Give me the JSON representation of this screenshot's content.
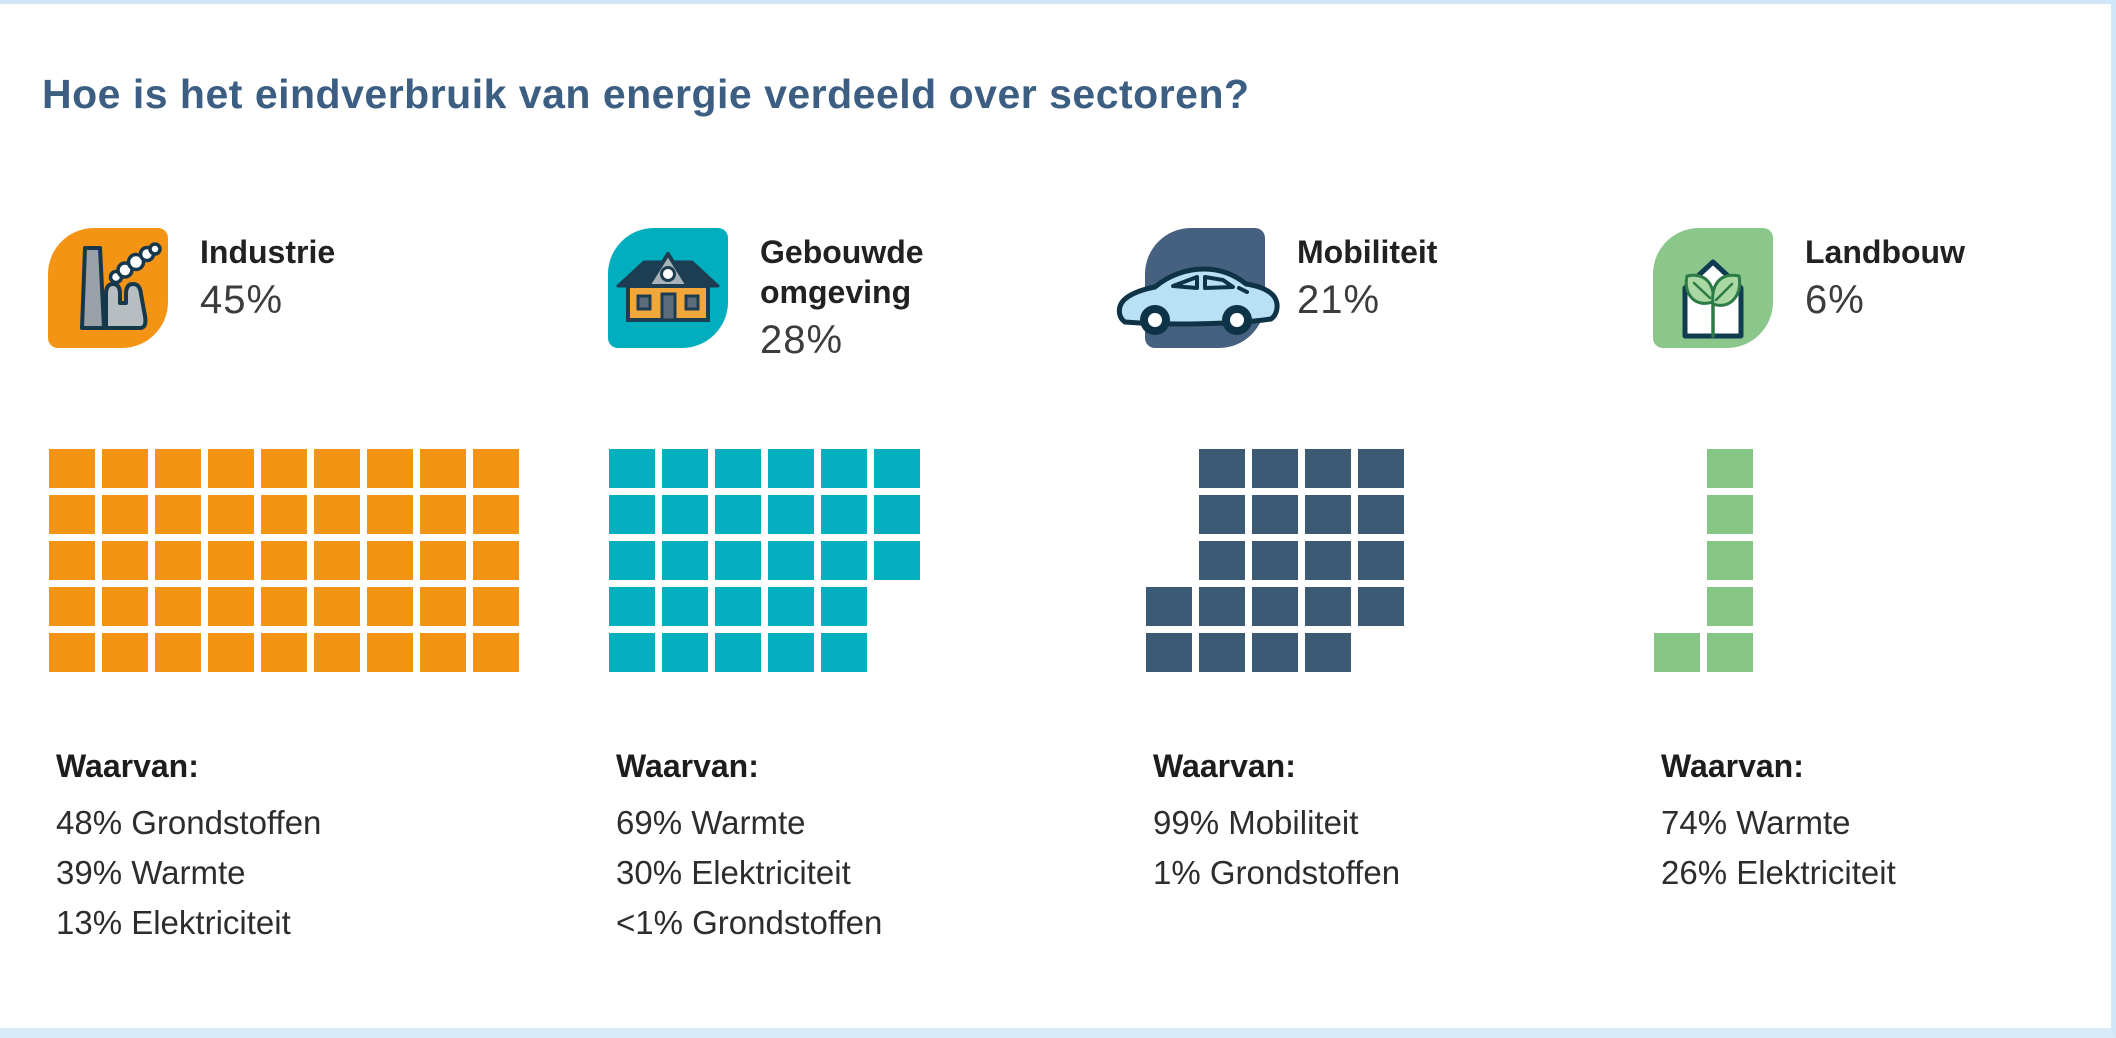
{
  "title": "Hoe is het eindverbruik van energie verdeeld over sectoren?",
  "breakdown_label": "Waarvan:",
  "colors": {
    "title_text": "#3c5e82",
    "frame_border": "#cfe7f8",
    "industrie": "#f39415",
    "gebouwde_omgeving": "#04b0bf",
    "mobiliteit": "#3d5a74",
    "landbouw": "#85c685"
  },
  "sectors": [
    {
      "id": "industrie",
      "name": "Industrie",
      "percent": "45%",
      "icon": "factory-icon",
      "color": "#f39415",
      "badge_color": "#f39415",
      "waffle_rows": [
        [
          1,
          1,
          1,
          1,
          1,
          1,
          1,
          1,
          1
        ],
        [
          1,
          1,
          1,
          1,
          1,
          1,
          1,
          1,
          1
        ],
        [
          1,
          1,
          1,
          1,
          1,
          1,
          1,
          1,
          1
        ],
        [
          1,
          1,
          1,
          1,
          1,
          1,
          1,
          1,
          1
        ],
        [
          1,
          1,
          1,
          1,
          1,
          1,
          1,
          1,
          1
        ]
      ],
      "breakdown": [
        "48% Grondstoffen",
        "39% Warmte",
        "13% Elektriciteit"
      ]
    },
    {
      "id": "gebouwde-omgeving",
      "name": "Gebouwde omgeving",
      "percent": "28%",
      "icon": "house-icon",
      "color": "#04b0bf",
      "badge_color": "#00aebe",
      "waffle_rows": [
        [
          1,
          1,
          1,
          1,
          1,
          1
        ],
        [
          1,
          1,
          1,
          1,
          1,
          1
        ],
        [
          1,
          1,
          1,
          1,
          1,
          1
        ],
        [
          1,
          1,
          1,
          1,
          1,
          0
        ],
        [
          1,
          1,
          1,
          1,
          1,
          0
        ]
      ],
      "breakdown": [
        "69% Warmte",
        "30% Elektriciteit",
        "<1% Grondstoffen"
      ]
    },
    {
      "id": "mobiliteit",
      "name": "Mobiliteit",
      "percent": "21%",
      "icon": "car-icon",
      "color": "#3d5a74",
      "badge_color": "#46617f",
      "waffle_rows": [
        [
          0,
          1,
          1,
          1,
          1
        ],
        [
          0,
          1,
          1,
          1,
          1
        ],
        [
          0,
          1,
          1,
          1,
          1
        ],
        [
          1,
          1,
          1,
          1,
          1
        ],
        [
          1,
          1,
          1,
          1,
          0
        ]
      ],
      "breakdown": [
        "99% Mobiliteit",
        "1% Grondstoffen"
      ]
    },
    {
      "id": "landbouw",
      "name": "Landbouw",
      "percent": "6%",
      "icon": "plant-greenhouse-icon",
      "color": "#85c685",
      "badge_color": "#8bc78b",
      "waffle_rows": [
        [
          0,
          1
        ],
        [
          0,
          1
        ],
        [
          0,
          1
        ],
        [
          0,
          1
        ],
        [
          1,
          1
        ]
      ],
      "breakdown": [
        "74% Warmte",
        "26% Elektriciteit"
      ]
    }
  ],
  "chart_data": {
    "type": "waffle",
    "title": "Hoe is het eindverbruik van energie verdeeld over sectoren?",
    "unit": "percent (1 square = 1%)",
    "categories": [
      "Industrie",
      "Gebouwde omgeving",
      "Mobiliteit",
      "Landbouw"
    ],
    "values": [
      45,
      28,
      21,
      6
    ],
    "series_colors": [
      "#f39415",
      "#04b0bf",
      "#3d5a74",
      "#85c685"
    ],
    "breakdowns": [
      {
        "category": "Industrie",
        "parts": [
          {
            "label": "Grondstoffen",
            "value": "48%"
          },
          {
            "label": "Warmte",
            "value": "39%"
          },
          {
            "label": "Elektriciteit",
            "value": "13%"
          }
        ]
      },
      {
        "category": "Gebouwde omgeving",
        "parts": [
          {
            "label": "Warmte",
            "value": "69%"
          },
          {
            "label": "Elektriciteit",
            "value": "30%"
          },
          {
            "label": "Grondstoffen",
            "value": "<1%"
          }
        ]
      },
      {
        "category": "Mobiliteit",
        "parts": [
          {
            "label": "Mobiliteit",
            "value": "99%"
          },
          {
            "label": "Grondstoffen",
            "value": "1%"
          }
        ]
      },
      {
        "category": "Landbouw",
        "parts": [
          {
            "label": "Warmte",
            "value": "74%"
          },
          {
            "label": "Elektriciteit",
            "value": "26%"
          }
        ]
      }
    ]
  }
}
